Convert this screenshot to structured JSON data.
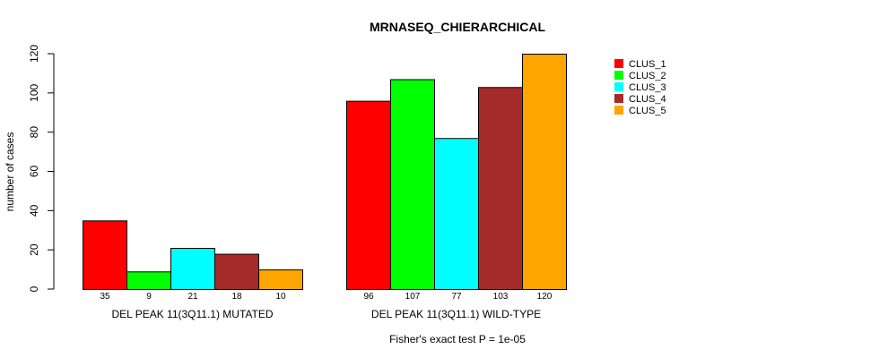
{
  "chart_data": {
    "type": "bar",
    "title": "MRNASEQ_CHIERARCHICAL",
    "ylabel": "number of cases",
    "xlabel": "",
    "subtitle": "Fisher's exact test P = 1e-05",
    "ylim": [
      0,
      120
    ],
    "yticks": [
      0,
      20,
      40,
      60,
      80,
      100,
      120
    ],
    "grid": false,
    "legend_position": "top-right",
    "groups": [
      "DEL PEAK 11(3Q11.1) MUTATED",
      "DEL PEAK 11(3Q11.1) WILD-TYPE"
    ],
    "series": [
      {
        "name": "CLUS_1",
        "color": "#ff0000",
        "values": [
          35,
          96
        ]
      },
      {
        "name": "CLUS_2",
        "color": "#00ff00",
        "values": [
          9,
          107
        ]
      },
      {
        "name": "CLUS_3",
        "color": "#00ffff",
        "values": [
          21,
          77
        ]
      },
      {
        "name": "CLUS_4",
        "color": "#a52a2a",
        "values": [
          18,
          103
        ]
      },
      {
        "name": "CLUS_5",
        "color": "#ffa500",
        "values": [
          10,
          120
        ]
      }
    ]
  }
}
